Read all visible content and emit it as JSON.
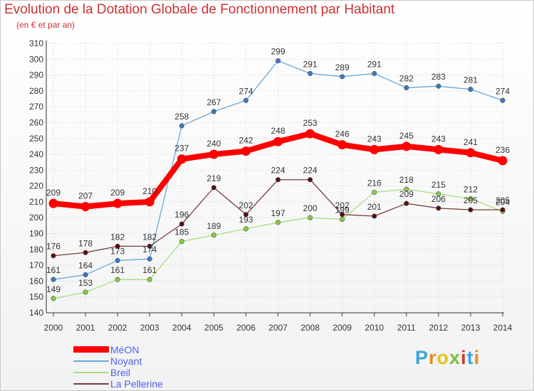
{
  "page": {
    "title": "Evolution de la Dotation Globale de Fonctionnement par Habitant",
    "subtitle": "(en € et par an)"
  },
  "logo": {
    "text": "Proxiti",
    "colors": [
      "#3aa6d8",
      "#e98a1d",
      "#e4c21a",
      "#7bbf38",
      "#d23a2a",
      "#3aa6d8",
      "#e98a1d"
    ]
  },
  "colors": {
    "axis": "#333333",
    "grid": "#cccccc",
    "label": "#333333"
  },
  "chart_data": {
    "type": "line",
    "title": "Evolution de la Dotation Globale de Fonctionnement par Habitant",
    "subtitle": "(en € et par an)",
    "x": [
      "2000",
      "2001",
      "2002",
      "2003",
      "2004",
      "2005",
      "2006",
      "2007",
      "2008",
      "2009",
      "2010",
      "2011",
      "2012",
      "2013",
      "2014"
    ],
    "ylim": [
      140,
      310
    ],
    "yticks": [
      140,
      150,
      160,
      170,
      180,
      190,
      200,
      210,
      220,
      230,
      240,
      250,
      260,
      270,
      280,
      290,
      300,
      310
    ],
    "grid": true,
    "legend_position": "bottom-left",
    "series": [
      {
        "name": "MéON",
        "color": "#ff0000",
        "marker": "#ff0000",
        "values": [
          209,
          207,
          209,
          210,
          237,
          240,
          242,
          248,
          253,
          246,
          243,
          245,
          243,
          241,
          236
        ]
      },
      {
        "name": "Noyant",
        "color": "#6aa8d8",
        "marker": "#3a7ac8",
        "values": [
          161,
          164,
          173,
          174,
          258,
          267,
          274,
          299,
          291,
          289,
          291,
          282,
          283,
          281,
          274
        ]
      },
      {
        "name": "Breil",
        "color": "#a8dc80",
        "marker": "#88d040",
        "values": [
          149,
          153,
          161,
          161,
          185,
          189,
          193,
          197,
          200,
          199,
          216,
          218,
          215,
          212,
          204
        ]
      },
      {
        "name": "La Pellerine",
        "color": "#7a3a3a",
        "marker": "#5a1010",
        "values": [
          176,
          178,
          182,
          182,
          196,
          219,
          202,
          224,
          224,
          202,
          201,
          209,
          206,
          205,
          205
        ]
      }
    ]
  }
}
